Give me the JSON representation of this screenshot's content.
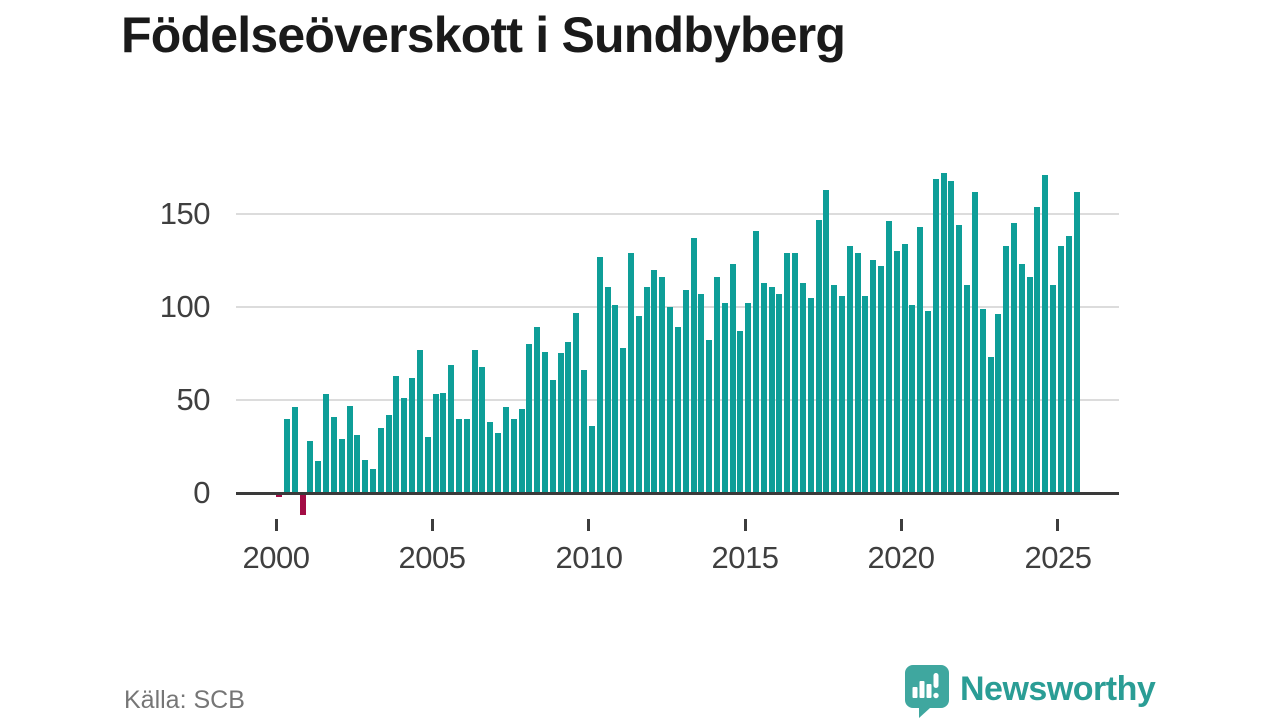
{
  "title": "Födelseöverskott i Sundbyberg",
  "source_label": "Källa: SCB",
  "branding": {
    "wordmark": "Newsworthy"
  },
  "colors": {
    "background": "#ffffff",
    "title_text": "#1a1a1a",
    "axis_text": "#3f3f3f",
    "grid_line": "#dcdcdc",
    "zero_line": "#3a3a3a",
    "source_text": "#767676",
    "bar_positive": "#0E9E98",
    "bar_negative": "#A30D45",
    "logo_bubble": "#3FA79F",
    "logo_wordmark": "#2a9d95"
  },
  "chart_data": {
    "type": "bar",
    "title": "Födelseöverskott i Sundbyberg",
    "frequency": "quarterly",
    "period_start": "2000-Q1",
    "period_end": "2025-Q3",
    "x_tick_labels": [
      "2000",
      "2005",
      "2010",
      "2015",
      "2020",
      "2025"
    ],
    "y_ticks": [
      0,
      50,
      100,
      150
    ],
    "gridlines": [
      50,
      100,
      150
    ],
    "ylim": [
      -15,
      180
    ],
    "legend": "none",
    "ylabel": "",
    "xlabel": "",
    "values": [
      -2,
      40,
      46,
      -12,
      28,
      17,
      53,
      41,
      29,
      47,
      31,
      18,
      13,
      35,
      42,
      63,
      51,
      62,
      77,
      30,
      53,
      54,
      69,
      40,
      40,
      77,
      68,
      38,
      32,
      46,
      40,
      45,
      80,
      89,
      76,
      61,
      75,
      81,
      97,
      66,
      36,
      127,
      111,
      101,
      78,
      129,
      95,
      111,
      120,
      116,
      100,
      89,
      109,
      137,
      107,
      82,
      116,
      102,
      123,
      87,
      102,
      141,
      113,
      111,
      107,
      129,
      129,
      113,
      105,
      147,
      163,
      112,
      106,
      133,
      129,
      106,
      125,
      122,
      146,
      130,
      134,
      101,
      143,
      98,
      169,
      172,
      168,
      144,
      112,
      162,
      99,
      73,
      96,
      133,
      145,
      123,
      116,
      154,
      171,
      112,
      133,
      138,
      162
    ]
  }
}
